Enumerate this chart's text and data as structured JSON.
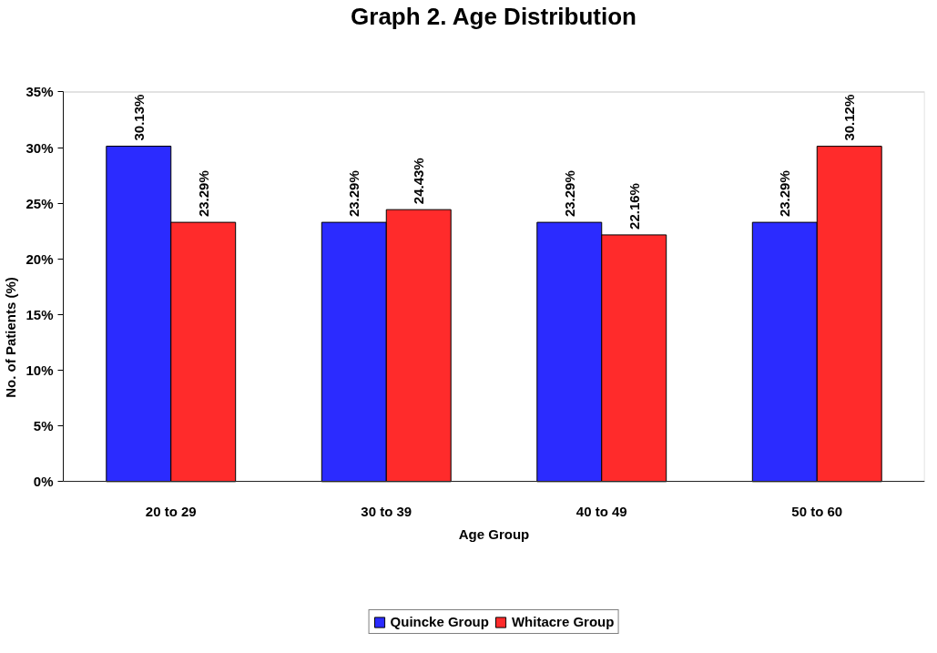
{
  "chart_data": {
    "type": "bar",
    "title": "Graph 2. Age Distribution",
    "xlabel": "Age Group",
    "ylabel": "No. of Patients (%)",
    "categories": [
      "20 to 29",
      "30 to 39",
      "40 to 49",
      "50 to 60"
    ],
    "series": [
      {
        "name": "Quincke Group",
        "color": "#2b2bff",
        "values": [
          30.13,
          23.29,
          23.29,
          23.29
        ],
        "value_labels": [
          "30.13%",
          "23.29%",
          "23.29%",
          "23.29%"
        ]
      },
      {
        "name": "Whitacre Group",
        "color": "#ff2b2b",
        "values": [
          23.29,
          24.43,
          22.16,
          30.12
        ],
        "value_labels": [
          "23.29%",
          "24.43%",
          "22.16%",
          "30.12%"
        ]
      }
    ],
    "ylim": [
      0,
      35
    ],
    "yticks": [
      {
        "value": 0,
        "label": "0%"
      },
      {
        "value": 5,
        "label": "5%"
      },
      {
        "value": 10,
        "label": "10%"
      },
      {
        "value": 15,
        "label": "15%"
      },
      {
        "value": 20,
        "label": "20%"
      },
      {
        "value": 25,
        "label": "25%"
      },
      {
        "value": 30,
        "label": "30%"
      },
      {
        "value": 35,
        "label": "35%"
      }
    ],
    "legend": "bottom",
    "grid": false
  }
}
